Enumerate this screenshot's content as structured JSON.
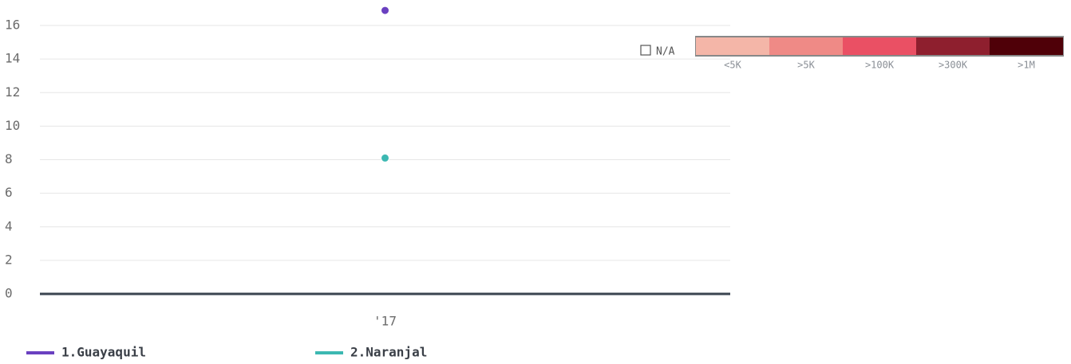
{
  "chart_data": {
    "type": "line",
    "categories": [
      "'17"
    ],
    "series": [
      {
        "name": "1.Guayaquil",
        "color": "#6a40c0",
        "values": [
          16.9
        ]
      },
      {
        "name": "2.Naranjal",
        "color": "#3cb8b2",
        "values": [
          8.1
        ]
      }
    ],
    "ylim": [
      0,
      17
    ],
    "yticks": [
      0,
      2,
      4,
      6,
      8,
      10,
      12,
      14,
      16
    ],
    "grid": true,
    "color_scale": {
      "na_label": "N/A",
      "bins": [
        {
          "label": "<5K",
          "color": "#f4b6a8"
        },
        {
          "label": ">5K",
          "color": "#ef8a86"
        },
        {
          "label": ">100K",
          "color": "#ea5064"
        },
        {
          "label": ">300K",
          "color": "#8e1f2e"
        },
        {
          "label": ">1M",
          "color": "#4f0008"
        }
      ]
    }
  }
}
